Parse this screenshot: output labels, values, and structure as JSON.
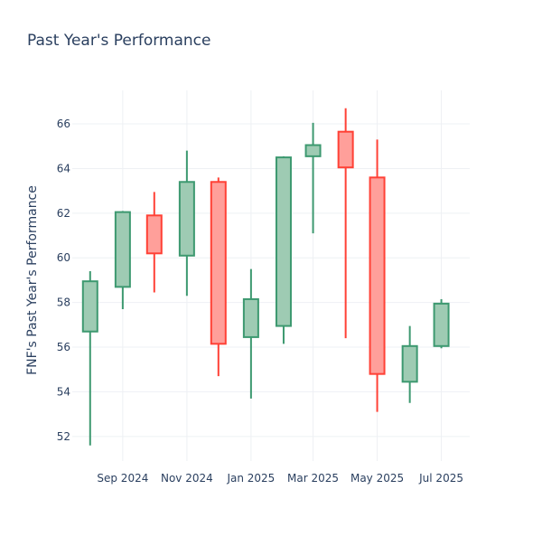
{
  "chart_data": {
    "type": "candlestick",
    "title": "Past Year's Performance",
    "ylabel": "FNF's Past Year's Performance",
    "xlabel": "",
    "ylim": [
      50.9,
      67.5
    ],
    "xlim": [
      "2024-07-15",
      "2025-07-28"
    ],
    "grid": true,
    "legend": "none",
    "colors": {
      "increasing_line": "#3d9970",
      "increasing_fill": "#9ecbb3",
      "decreasing_line": "#ff4136",
      "decreasing_fill": "#ff9f9a",
      "grid": "#eef0f4",
      "text": "#2a3f5f"
    },
    "y_ticks": [
      52,
      54,
      56,
      58,
      60,
      62,
      64,
      66
    ],
    "x_ticks": [
      {
        "date": "2024-09-01",
        "label": "Sep 2024"
      },
      {
        "date": "2024-11-01",
        "label": "Nov 2024"
      },
      {
        "date": "2025-01-01",
        "label": "Jan 2025"
      },
      {
        "date": "2025-03-01",
        "label": "Mar 2025"
      },
      {
        "date": "2025-05-01",
        "label": "May 2025"
      },
      {
        "date": "2025-07-01",
        "label": "Jul 2025"
      }
    ],
    "candles": [
      {
        "date": "2024-08-01",
        "open": 56.7,
        "high": 59.4,
        "low": 51.6,
        "close": 58.95
      },
      {
        "date": "2024-09-01",
        "open": 58.7,
        "high": 62.1,
        "low": 57.7,
        "close": 62.05
      },
      {
        "date": "2024-10-01",
        "open": 61.9,
        "high": 62.95,
        "low": 58.45,
        "close": 60.2
      },
      {
        "date": "2024-11-01",
        "open": 60.1,
        "high": 64.8,
        "low": 58.3,
        "close": 63.4
      },
      {
        "date": "2024-12-01",
        "open": 63.4,
        "high": 63.6,
        "low": 54.7,
        "close": 56.15
      },
      {
        "date": "2025-01-01",
        "open": 56.45,
        "high": 59.5,
        "low": 53.7,
        "close": 58.15
      },
      {
        "date": "2025-02-01",
        "open": 56.95,
        "high": 64.55,
        "low": 56.15,
        "close": 64.5
      },
      {
        "date": "2025-03-01",
        "open": 64.55,
        "high": 66.05,
        "low": 61.1,
        "close": 65.05
      },
      {
        "date": "2025-04-01",
        "open": 65.65,
        "high": 66.7,
        "low": 56.4,
        "close": 64.05
      },
      {
        "date": "2025-05-01",
        "open": 63.6,
        "high": 65.3,
        "low": 53.1,
        "close": 54.8
      },
      {
        "date": "2025-06-01",
        "open": 54.45,
        "high": 56.95,
        "low": 53.5,
        "close": 56.05
      },
      {
        "date": "2025-07-01",
        "open": 56.05,
        "high": 58.15,
        "low": 55.95,
        "close": 57.95
      }
    ]
  }
}
